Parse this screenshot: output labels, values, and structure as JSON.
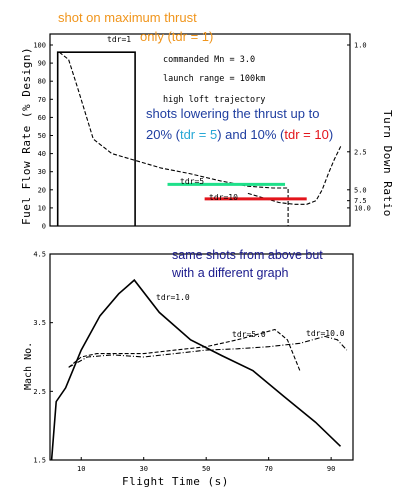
{
  "colors": {
    "orange": "#f0951c",
    "blue_text": "#1f3ea0",
    "navy_text": "#1a1a8c",
    "cyan": "#27a8d6",
    "red": "#e3141b",
    "green": "#1ee08a"
  },
  "overlay_notes": {
    "top_line1": "shot on maximum thrust",
    "top_line2_prefix": "only (tdr = 1)",
    "mid_line1": "shots lowering the thrust up to",
    "mid_line2_a": "20% (",
    "mid_line2_b": "tdr = 5",
    "mid_line2_c": ") and 10% (",
    "mid_line2_d": "tdr = 10",
    "mid_line2_e": ")",
    "bottom_line1": "same shots from above but",
    "bottom_line2": "with a different graph"
  },
  "chart_data": [
    {
      "type": "line",
      "ylabel": "Fuel Flow Rate (% Design)",
      "y2label": "Turn Down Ratio",
      "ylim": [
        0,
        100
      ],
      "yticks": [
        "0",
        "10",
        "20",
        "30",
        "40",
        "50",
        "60",
        "70",
        "80",
        "90",
        "100"
      ],
      "y2ticks": [
        "1.0",
        "2.5",
        "5.0",
        "7.5",
        "10.0"
      ],
      "info_lines": [
        "commanded Mn = 3.0",
        "launch range = 100km",
        "high loft trajectory"
      ],
      "series": [
        {
          "name": "tdr=1",
          "style": "solid",
          "x": [
            2.5,
            2.5,
            27.5,
            27.5
          ],
          "y": [
            0,
            96,
            96,
            0
          ]
        },
        {
          "name": "tdr=5",
          "style": "dashed",
          "x": [
            3,
            6,
            9,
            14,
            20,
            28,
            36,
            45,
            55,
            64,
            72,
            77,
            77
          ],
          "y": [
            96,
            92,
            76,
            48,
            40,
            36,
            32,
            29,
            25,
            22,
            21,
            21,
            0
          ]
        },
        {
          "name": "tdr=10",
          "style": "dashed",
          "x": [
            64,
            70,
            74,
            79,
            83,
            86,
            88,
            90,
            92,
            94
          ],
          "y": [
            18,
            15,
            13,
            12,
            12,
            14,
            20,
            29,
            37,
            44
          ]
        }
      ],
      "highlights": [
        {
          "label": "tdr=5",
          "color": "green",
          "x": [
            38,
            76
          ],
          "y": 23
        },
        {
          "label": "tdr=10",
          "color": "red",
          "x": [
            50,
            83
          ],
          "y": 15
        }
      ]
    },
    {
      "type": "line",
      "xlabel": "Flight Time (s)",
      "ylabel": "Mach No.",
      "xlim": [
        0,
        97
      ],
      "ylim": [
        1.5,
        4.5
      ],
      "xticks": [
        10,
        30,
        50,
        70,
        90
      ],
      "yticks": [
        "1.5",
        "2.5",
        "3.5",
        "4.5"
      ],
      "series": [
        {
          "name": "tdr=1.0",
          "style": "solid",
          "x": [
            0.5,
            2,
            5,
            10,
            16,
            22,
            27,
            35,
            45,
            55,
            65,
            75,
            85,
            93
          ],
          "y": [
            1.5,
            2.35,
            2.55,
            3.1,
            3.6,
            3.92,
            4.12,
            3.65,
            3.25,
            3.02,
            2.8,
            2.42,
            2.05,
            1.7
          ]
        },
        {
          "name": "tdr=5.0",
          "style": "dashed",
          "x": [
            6,
            10,
            15,
            22,
            30,
            40,
            50,
            60,
            68,
            72,
            76,
            80
          ],
          "y": [
            2.85,
            3.0,
            3.05,
            3.05,
            3.05,
            3.1,
            3.15,
            3.25,
            3.35,
            3.4,
            3.25,
            2.8
          ]
        },
        {
          "name": "tdr=10.0",
          "style": "dashdot",
          "x": [
            6,
            12,
            20,
            30,
            40,
            50,
            60,
            70,
            80,
            88,
            92,
            95
          ],
          "y": [
            2.85,
            3.0,
            3.03,
            3.0,
            3.05,
            3.1,
            3.12,
            3.15,
            3.2,
            3.3,
            3.25,
            3.1
          ]
        }
      ]
    }
  ]
}
